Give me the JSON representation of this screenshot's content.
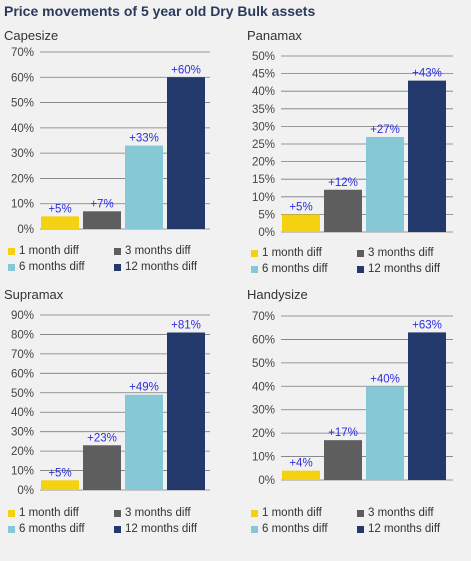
{
  "title": "Price movements of 5 year old Dry Bulk assets",
  "colors": {
    "1m": "#f5d211",
    "3m": "#5e5e5e",
    "6m": "#86c8d6",
    "12m": "#23396b",
    "label": "#2d2de0"
  },
  "legend": [
    "1 month diff",
    "3 months diff",
    "6 months diff",
    "12 months diff"
  ],
  "chart_data": [
    {
      "type": "bar",
      "title": "Capesize",
      "categories": [
        "1 month diff",
        "3 months diff",
        "6 months diff",
        "12 months diff"
      ],
      "values": [
        5,
        7,
        33,
        60
      ],
      "data_labels": [
        "+5%",
        "+7%",
        "+33%",
        "+60%"
      ],
      "ylim": [
        0,
        70
      ],
      "ystep": 10,
      "yticks": [
        "0%",
        "10%",
        "20%",
        "30%",
        "40%",
        "50%",
        "60%",
        "70%"
      ],
      "grid": true,
      "legend": "bottom"
    },
    {
      "type": "bar",
      "title": "Panamax",
      "categories": [
        "1 month diff",
        "3 months diff",
        "6 months diff",
        "12 months diff"
      ],
      "values": [
        5,
        12,
        27,
        43
      ],
      "data_labels": [
        "+5%",
        "+12%",
        "+27%",
        "+43%"
      ],
      "ylim": [
        0,
        50
      ],
      "ystep": 5,
      "yticks": [
        "0%",
        "5%",
        "10%",
        "15%",
        "20%",
        "25%",
        "30%",
        "35%",
        "40%",
        "45%",
        "50%"
      ],
      "grid": true,
      "legend": "bottom"
    },
    {
      "type": "bar",
      "title": "Supramax",
      "categories": [
        "1 month diff",
        "3 months diff",
        "6 months diff",
        "12 months diff"
      ],
      "values": [
        5,
        23,
        49,
        81
      ],
      "data_labels": [
        "+5%",
        "+23%",
        "+49%",
        "+81%"
      ],
      "ylim": [
        0,
        90
      ],
      "ystep": 10,
      "yticks": [
        "0%",
        "10%",
        "20%",
        "30%",
        "40%",
        "50%",
        "60%",
        "70%",
        "80%",
        "90%"
      ],
      "grid": true,
      "legend": "bottom"
    },
    {
      "type": "bar",
      "title": "Handysize",
      "categories": [
        "1 month diff",
        "3 months diff",
        "6 months diff",
        "12 months diff"
      ],
      "values": [
        4,
        17,
        40,
        63
      ],
      "data_labels": [
        "+4%",
        "+17%",
        "+40%",
        "+63%"
      ],
      "ylim": [
        0,
        70
      ],
      "ystep": 10,
      "yticks": [
        "0%",
        "10%",
        "20%",
        "30%",
        "40%",
        "50%",
        "60%",
        "70%"
      ],
      "grid": true,
      "legend": "bottom"
    }
  ]
}
